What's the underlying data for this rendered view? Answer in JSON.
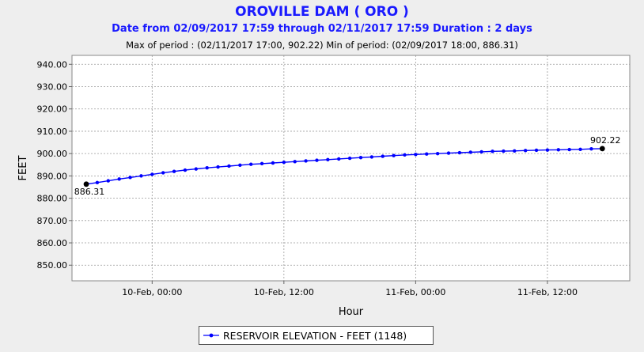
{
  "chart_data": {
    "type": "line",
    "title": "OROVILLE DAM ( ORO )",
    "subtitle": "Date from 02/09/2017 17:59 through 02/11/2017 17:59 Duration : 2 days",
    "period_info": "Max of period : (02/11/2017 17:00, 902.22)  Min of period: (02/09/2017 18:00,  886.31)",
    "xlabel": "Hour",
    "ylabel": "FEET",
    "ylim": [
      843,
      944
    ],
    "xlim_hours": [
      -1.3,
      49.5
    ],
    "yticks": [
      "940.00",
      "930.00",
      "920.00",
      "910.00",
      "900.00",
      "890.00",
      "880.00",
      "870.00",
      "860.00",
      "850.00"
    ],
    "ytick_values": [
      940,
      930,
      920,
      910,
      900,
      890,
      880,
      870,
      860,
      850
    ],
    "xticks": [
      "10-Feb, 00:00",
      "10-Feb, 12:00",
      "11-Feb, 00:00",
      "11-Feb, 12:00"
    ],
    "xtick_hours": [
      6,
      18,
      30,
      42
    ],
    "series": [
      {
        "name": "RESERVOIR ELEVATION - FEET (1148)",
        "color": "#0000ff",
        "x_hours": [
          0,
          1,
          2,
          3,
          4,
          5,
          6,
          7,
          8,
          9,
          10,
          11,
          12,
          13,
          14,
          15,
          16,
          17,
          18,
          19,
          20,
          21,
          22,
          23,
          24,
          25,
          26,
          27,
          28,
          29,
          30,
          31,
          32,
          33,
          34,
          35,
          36,
          37,
          38,
          39,
          40,
          41,
          42,
          43,
          44,
          45,
          46,
          47
        ],
        "values": [
          886.31,
          887.0,
          887.8,
          888.6,
          889.3,
          890.0,
          890.7,
          891.4,
          892.0,
          892.6,
          893.1,
          893.6,
          894.0,
          894.4,
          894.8,
          895.2,
          895.5,
          895.8,
          896.1,
          896.4,
          896.7,
          897.0,
          897.3,
          897.6,
          897.9,
          898.2,
          898.5,
          898.8,
          899.1,
          899.4,
          899.6,
          899.8,
          900.0,
          900.2,
          900.4,
          900.6,
          900.8,
          901.0,
          901.1,
          901.2,
          901.35,
          901.5,
          901.6,
          901.7,
          901.8,
          901.9,
          902.1,
          902.22
        ]
      }
    ],
    "annotations": [
      {
        "text": "886.31",
        "x_hours": 0,
        "y": 886.31,
        "placement": "below"
      },
      {
        "text": "902.22",
        "x_hours": 47,
        "y": 902.22,
        "placement": "above"
      }
    ],
    "legend_label": "RESERVOIR ELEVATION - FEET (1148)",
    "grid": true
  }
}
